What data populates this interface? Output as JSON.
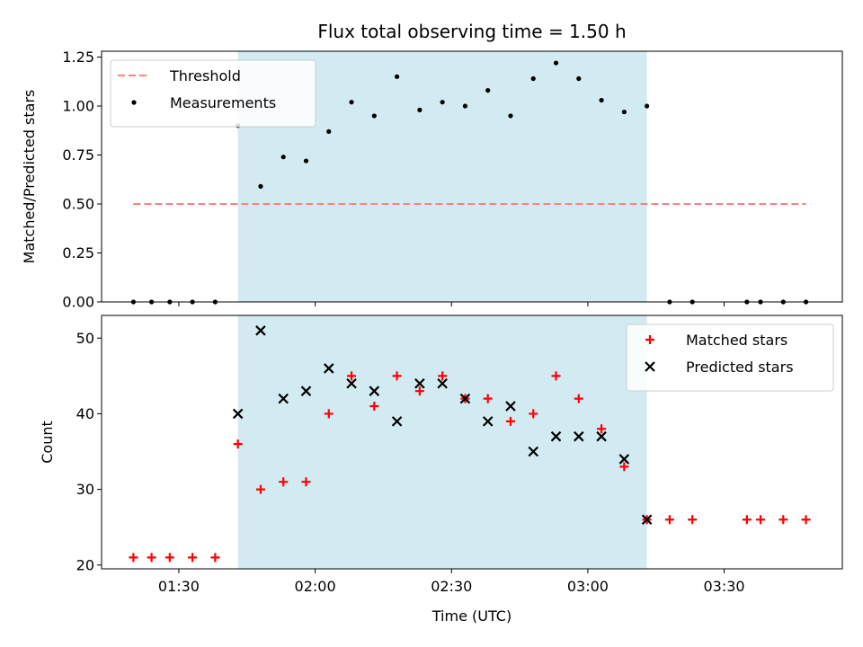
{
  "chart_data": {
    "type": "scatter",
    "title": "Flux total observing time = 1.50 h",
    "xlabel": "Time (UTC)",
    "x_unit": "minutes after 00:00 UTC",
    "xlim": [
      73,
      236
    ],
    "x_ticks": [
      {
        "value": 90,
        "label": "01:30"
      },
      {
        "value": 120,
        "label": "02:00"
      },
      {
        "value": 150,
        "label": "02:30"
      },
      {
        "value": 180,
        "label": "03:00"
      },
      {
        "value": 210,
        "label": "03:30"
      }
    ],
    "observing_window": {
      "start": 103,
      "end": 193,
      "color": "#add8e6"
    },
    "panels": [
      {
        "ylabel": "Matched/Predicted stars",
        "ylim": [
          0,
          1.28
        ],
        "y_ticks": [
          {
            "value": 0.0,
            "label": "0.00"
          },
          {
            "value": 0.25,
            "label": "0.25"
          },
          {
            "value": 0.5,
            "label": "0.50"
          },
          {
            "value": 0.75,
            "label": "0.75"
          },
          {
            "value": 1.0,
            "label": "1.00"
          },
          {
            "value": 1.25,
            "label": "1.25"
          }
        ],
        "legend_position": "top-left",
        "threshold": {
          "name": "Threshold",
          "value": 0.5,
          "x_start": 80,
          "x_end": 228,
          "color": "#ff8080",
          "style": "dashed"
        },
        "series": [
          {
            "name": "Measurements",
            "marker": "dot",
            "color": "#000000",
            "x": [
              80,
              84,
              88,
              93,
              98,
              103,
              108,
              113,
              118,
              123,
              128,
              133,
              138,
              143,
              148,
              153,
              158,
              163,
              168,
              173,
              178,
              183,
              188,
              193,
              198,
              203,
              215,
              218,
              223,
              228
            ],
            "y": [
              0.0,
              0.0,
              0.0,
              0.0,
              0.0,
              0.9,
              0.59,
              0.74,
              0.72,
              0.87,
              1.02,
              0.95,
              1.15,
              0.98,
              1.02,
              1.0,
              1.08,
              0.95,
              1.14,
              1.22,
              1.14,
              1.03,
              0.97,
              1.0,
              0.0,
              0.0,
              0.0,
              0.0,
              0.0,
              0.0
            ]
          }
        ]
      },
      {
        "ylabel": "Count",
        "ylim": [
          19.5,
          53
        ],
        "y_ticks": [
          {
            "value": 20,
            "label": "20"
          },
          {
            "value": 30,
            "label": "30"
          },
          {
            "value": 40,
            "label": "40"
          },
          {
            "value": 50,
            "label": "50"
          }
        ],
        "legend_position": "top-right",
        "series": [
          {
            "name": "Matched stars",
            "marker": "plus",
            "color": "#ff0000",
            "x": [
              80,
              84,
              88,
              93,
              98,
              103,
              108,
              113,
              118,
              123,
              128,
              133,
              138,
              143,
              148,
              153,
              158,
              163,
              168,
              173,
              178,
              183,
              188,
              193,
              198,
              203,
              215,
              218,
              223,
              228
            ],
            "y": [
              21,
              21,
              21,
              21,
              21,
              36,
              30,
              31,
              31,
              40,
              45,
              41,
              45,
              43,
              45,
              42,
              42,
              39,
              40,
              45,
              42,
              38,
              33,
              26,
              26,
              26,
              26,
              26,
              26,
              26
            ]
          },
          {
            "name": "Predicted stars",
            "marker": "x",
            "color": "#000000",
            "x": [
              103,
              108,
              113,
              118,
              123,
              128,
              133,
              138,
              143,
              148,
              153,
              158,
              163,
              168,
              173,
              178,
              183,
              188,
              193
            ],
            "y": [
              40,
              51,
              42,
              43,
              46,
              44,
              43,
              39,
              44,
              44,
              42,
              39,
              41,
              35,
              37,
              37,
              37,
              34,
              26
            ]
          }
        ]
      }
    ]
  }
}
